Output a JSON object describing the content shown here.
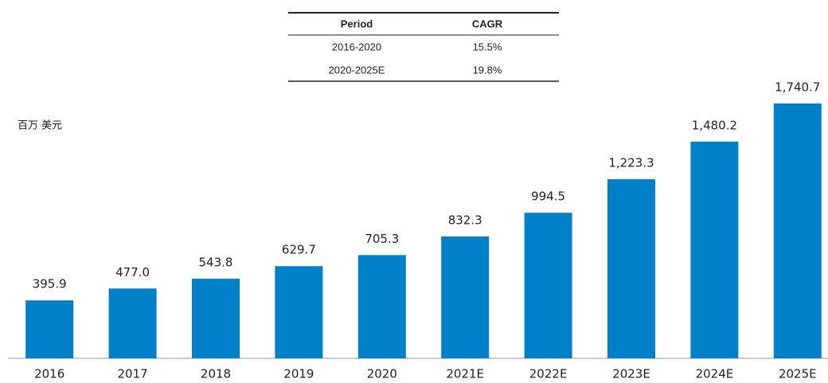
{
  "chart_data": {
    "type": "bar",
    "unit_label": "百万 美元",
    "categories": [
      "2016",
      "2017",
      "2018",
      "2019",
      "2020",
      "2021E",
      "2022E",
      "2023E",
      "2024E",
      "2025E"
    ],
    "values": [
      395.9,
      477.0,
      543.8,
      629.7,
      705.3,
      832.3,
      994.5,
      1223.3,
      1480.2,
      1740.7
    ],
    "value_labels": [
      "395.9",
      "477.0",
      "543.8",
      "629.7",
      "705.3",
      "832.3",
      "994.5",
      "1,223.3",
      "1,480.2",
      "1,740.7"
    ],
    "color": "#0080c8"
  },
  "table": {
    "columns": [
      "Period",
      "CAGR"
    ],
    "rows": [
      [
        "2016-2020",
        "15.5%"
      ],
      [
        "2020-2025E",
        "19.8%"
      ]
    ]
  }
}
